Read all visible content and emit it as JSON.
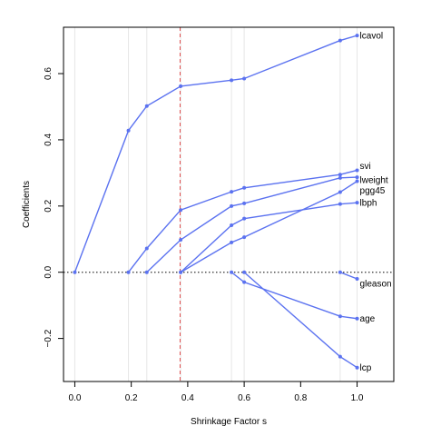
{
  "chart_data": {
    "type": "line",
    "title": "",
    "xlabel": "Shrinkage Factor s",
    "ylabel": "Coefficients",
    "xlim": [
      -0.04,
      1.13
    ],
    "ylim": [
      -0.33,
      0.74
    ],
    "x_ticks": [
      0.0,
      0.2,
      0.4,
      0.6,
      0.8,
      1.0
    ],
    "x_tick_labels": [
      "0.0",
      "0.2",
      "0.4",
      "0.6",
      "0.8",
      "1.0"
    ],
    "y_ticks": [
      -0.2,
      0.0,
      0.2,
      0.4,
      0.6
    ],
    "y_tick_labels": [
      "−0.2",
      "0.0",
      "0.2",
      "0.4",
      "0.6"
    ],
    "vertical_gridlines_at_steps": [
      0.0,
      0.19,
      0.255,
      0.375,
      0.555,
      0.6,
      0.94,
      1.0
    ],
    "reference_vertical_line": {
      "x": 0.373,
      "color": "#e05050",
      "style": "dashed"
    },
    "zero_line": {
      "y": 0.0,
      "style": "dotted",
      "color": "#333333"
    },
    "line_color": "#5b72f0",
    "legend": "none (labels at right end of each path)",
    "series": [
      {
        "name": "lcavol",
        "x": [
          0.0,
          0.19,
          0.255,
          0.375,
          0.555,
          0.6,
          0.94,
          1.0
        ],
        "y": [
          0.0,
          0.428,
          0.502,
          0.562,
          0.58,
          0.585,
          0.7,
          0.715
        ]
      },
      {
        "name": "svi",
        "x": [
          0.19,
          0.255,
          0.375,
          0.555,
          0.6,
          0.94,
          1.0
        ],
        "y": [
          0.0,
          0.072,
          0.188,
          0.243,
          0.255,
          0.295,
          0.308
        ]
      },
      {
        "name": "lweight",
        "x": [
          0.255,
          0.375,
          0.555,
          0.6,
          0.94,
          1.0
        ],
        "y": [
          0.0,
          0.098,
          0.2,
          0.208,
          0.285,
          0.287
        ]
      },
      {
        "name": "pgg45",
        "x": [
          0.375,
          0.555,
          0.6,
          0.94,
          1.0
        ],
        "y": [
          0.0,
          0.09,
          0.106,
          0.242,
          0.275
        ]
      },
      {
        "name": "lbph",
        "x": [
          0.375,
          0.555,
          0.6,
          0.94,
          1.0
        ],
        "y": [
          0.0,
          0.142,
          0.162,
          0.206,
          0.21
        ]
      },
      {
        "name": "gleason",
        "x": [
          0.94,
          1.0
        ],
        "y": [
          0.0,
          -0.02
        ]
      },
      {
        "name": "age",
        "x": [
          0.555,
          0.6,
          0.94,
          1.0
        ],
        "y": [
          0.0,
          -0.03,
          -0.133,
          -0.14
        ]
      },
      {
        "name": "lcp",
        "x": [
          0.6,
          0.94,
          1.0
        ],
        "y": [
          0.0,
          -0.255,
          -0.288
        ]
      }
    ]
  }
}
